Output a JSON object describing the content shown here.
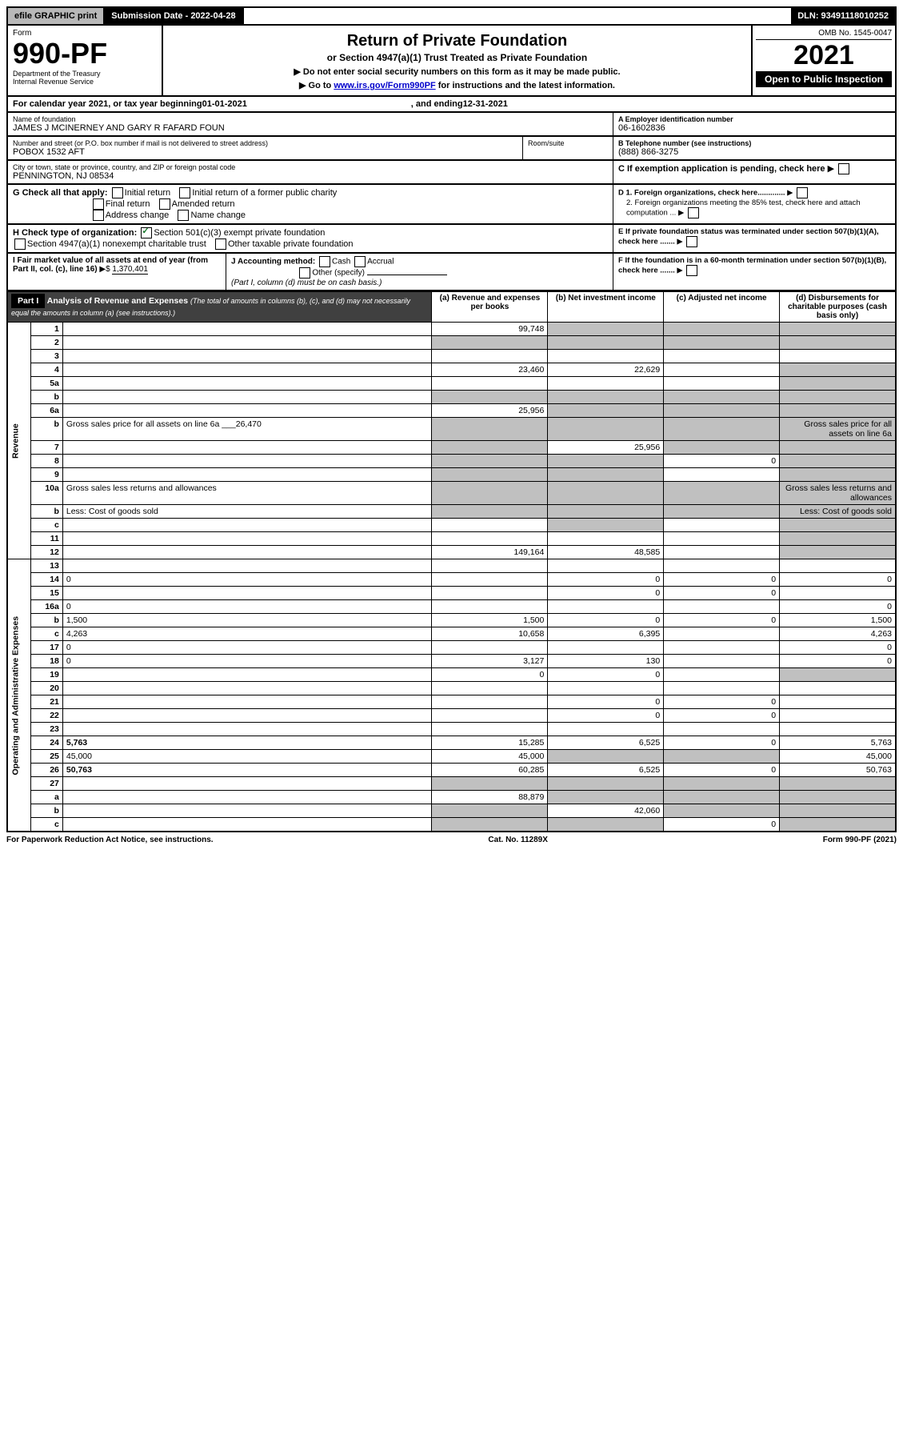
{
  "topbar": {
    "efile": "efile GRAPHIC print",
    "submission": "Submission Date - 2022-04-28",
    "dln": "DLN: 93491118010252"
  },
  "header": {
    "form_label": "Form",
    "form_number": "990-PF",
    "dept": "Department of the Treasury\nInternal Revenue Service",
    "title": "Return of Private Foundation",
    "subtitle": "or Section 4947(a)(1) Trust Treated as Private Foundation",
    "note1": "▶ Do not enter social security numbers on this form as it may be made public.",
    "note2_prefix": "▶ Go to ",
    "note2_link": "www.irs.gov/Form990PF",
    "note2_suffix": " for instructions and the latest information.",
    "omb": "OMB No. 1545-0047",
    "year": "2021",
    "open": "Open to Public Inspection"
  },
  "calendar": {
    "text_prefix": "For calendar year 2021, or tax year beginning ",
    "begin": "01-01-2021",
    "mid": ", and ending ",
    "end": "12-31-2021"
  },
  "info": {
    "name_label": "Name of foundation",
    "name": "JAMES J MCINERNEY AND GARY R FAFARD FOUN",
    "addr_label": "Number and street (or P.O. box number if mail is not delivered to street address)",
    "addr": "POBOX 1532 AFT",
    "room_label": "Room/suite",
    "city_label": "City or town, state or province, country, and ZIP or foreign postal code",
    "city": "PENNINGTON, NJ  08534",
    "ein_label": "A Employer identification number",
    "ein": "06-1602836",
    "tel_label": "B Telephone number (see instructions)",
    "tel": "(888) 866-3275",
    "c_label": "C If exemption application is pending, check here",
    "d1": "D 1. Foreign organizations, check here.............",
    "d2": "2. Foreign organizations meeting the 85% test, check here and attach computation ...",
    "e_label": "E If private foundation status was terminated under section 507(b)(1)(A), check here .......",
    "f_label": "F If the foundation is in a 60-month termination under section 507(b)(1)(B), check here ......."
  },
  "checks": {
    "g_label": "G Check all that apply:",
    "initial": "Initial return",
    "initial_former": "Initial return of a former public charity",
    "final": "Final return",
    "amended": "Amended return",
    "address": "Address change",
    "name_change": "Name change",
    "h_label": "H Check type of organization:",
    "h501": "Section 501(c)(3) exempt private foundation",
    "h4947": "Section 4947(a)(1) nonexempt charitable trust",
    "hother": "Other taxable private foundation",
    "i_label": "I Fair market value of all assets at end of year (from Part II, col. (c), line 16)",
    "i_value": "1,370,401",
    "j_label": "J Accounting method:",
    "j_cash": "Cash",
    "j_accrual": "Accrual",
    "j_other": "Other (specify)",
    "j_note": "(Part I, column (d) must be on cash basis.)"
  },
  "part1": {
    "label": "Part I",
    "title": "Analysis of Revenue and Expenses",
    "title_note": "(The total of amounts in columns (b), (c), and (d) may not necessarily equal the amounts in column (a) (see instructions).)",
    "col_a": "(a) Revenue and expenses per books",
    "col_b": "(b) Net investment income",
    "col_c": "(c) Adjusted net income",
    "col_d": "(d) Disbursements for charitable purposes (cash basis only)"
  },
  "sections": {
    "revenue": "Revenue",
    "expenses": "Operating and Administrative Expenses"
  },
  "rows": [
    {
      "n": "1",
      "d": "",
      "a": "99,748",
      "b": "",
      "c": "",
      "grey_b": true,
      "grey_c": true,
      "grey_d": true
    },
    {
      "n": "2",
      "d": "",
      "a": "",
      "b": "",
      "c": "",
      "all_grey": true
    },
    {
      "n": "3",
      "d": "",
      "a": "",
      "b": "",
      "c": ""
    },
    {
      "n": "4",
      "d": "",
      "a": "23,460",
      "b": "22,629",
      "c": "",
      "grey_d": true
    },
    {
      "n": "5a",
      "d": "",
      "a": "",
      "b": "",
      "c": "",
      "grey_d": true
    },
    {
      "n": "b",
      "d": "",
      "a": "",
      "b": "",
      "c": "",
      "all_grey": true,
      "inline": true
    },
    {
      "n": "6a",
      "d": "",
      "a": "25,956",
      "b": "",
      "c": "",
      "grey_b": true,
      "grey_c": true,
      "grey_d": true
    },
    {
      "n": "b",
      "d": "Gross sales price for all assets on line 6a",
      "inline_val": "26,470",
      "all_grey": true
    },
    {
      "n": "7",
      "d": "",
      "a": "",
      "b": "25,956",
      "c": "",
      "grey_a": true,
      "grey_c": true,
      "grey_d": true
    },
    {
      "n": "8",
      "d": "",
      "a": "",
      "b": "",
      "c": "0",
      "grey_a": true,
      "grey_b": true,
      "grey_d": true
    },
    {
      "n": "9",
      "d": "",
      "a": "",
      "b": "",
      "c": "",
      "grey_a": true,
      "grey_b": true,
      "grey_d": true
    },
    {
      "n": "10a",
      "d": "Gross sales less returns and allowances",
      "inline": true,
      "all_grey": true
    },
    {
      "n": "b",
      "d": "Less: Cost of goods sold",
      "inline": true,
      "all_grey": true
    },
    {
      "n": "c",
      "d": "",
      "a": "",
      "b": "",
      "c": "",
      "grey_b": true,
      "grey_d": true
    },
    {
      "n": "11",
      "d": "",
      "a": "",
      "b": "",
      "c": "",
      "grey_d": true
    },
    {
      "n": "12",
      "d": "",
      "a": "149,164",
      "b": "48,585",
      "c": "",
      "bold": true,
      "grey_d": true
    },
    {
      "n": "13",
      "d": "",
      "a": "",
      "b": "",
      "c": ""
    },
    {
      "n": "14",
      "d": "0",
      "a": "",
      "b": "0",
      "c": "0"
    },
    {
      "n": "15",
      "d": "",
      "a": "",
      "b": "0",
      "c": "0"
    },
    {
      "n": "16a",
      "d": "0",
      "a": "",
      "b": "",
      "c": ""
    },
    {
      "n": "b",
      "d": "1,500",
      "a": "1,500",
      "b": "0",
      "c": "0"
    },
    {
      "n": "c",
      "d": "4,263",
      "a": "10,658",
      "b": "6,395",
      "c": ""
    },
    {
      "n": "17",
      "d": "0",
      "a": "",
      "b": "",
      "c": ""
    },
    {
      "n": "18",
      "d": "0",
      "a": "3,127",
      "b": "130",
      "c": ""
    },
    {
      "n": "19",
      "d": "",
      "a": "0",
      "b": "0",
      "c": "",
      "grey_d": true
    },
    {
      "n": "20",
      "d": "",
      "a": "",
      "b": "",
      "c": ""
    },
    {
      "n": "21",
      "d": "",
      "a": "",
      "b": "0",
      "c": "0"
    },
    {
      "n": "22",
      "d": "",
      "a": "",
      "b": "0",
      "c": "0"
    },
    {
      "n": "23",
      "d": "",
      "a": "",
      "b": "",
      "c": ""
    },
    {
      "n": "24",
      "d": "5,763",
      "a": "15,285",
      "b": "6,525",
      "c": "0",
      "bold": true
    },
    {
      "n": "25",
      "d": "45,000",
      "a": "45,000",
      "b": "",
      "c": "",
      "grey_b": true,
      "grey_c": true
    },
    {
      "n": "26",
      "d": "50,763",
      "a": "60,285",
      "b": "6,525",
      "c": "0",
      "bold": true
    },
    {
      "n": "27",
      "d": "",
      "a": "",
      "b": "",
      "c": "",
      "grey_a": true,
      "grey_b": true,
      "grey_c": true,
      "grey_d": true
    },
    {
      "n": "a",
      "d": "",
      "a": "88,879",
      "b": "",
      "c": "",
      "bold": true,
      "grey_b": true,
      "grey_c": true,
      "grey_d": true
    },
    {
      "n": "b",
      "d": "",
      "a": "",
      "b": "42,060",
      "c": "",
      "bold": true,
      "grey_a": true,
      "grey_c": true,
      "grey_d": true
    },
    {
      "n": "c",
      "d": "",
      "a": "",
      "b": "",
      "c": "0",
      "bold": true,
      "grey_a": true,
      "grey_b": true,
      "grey_d": true
    }
  ],
  "footer": {
    "left": "For Paperwork Reduction Act Notice, see instructions.",
    "mid": "Cat. No. 11289X",
    "right": "Form 990-PF (2021)"
  }
}
